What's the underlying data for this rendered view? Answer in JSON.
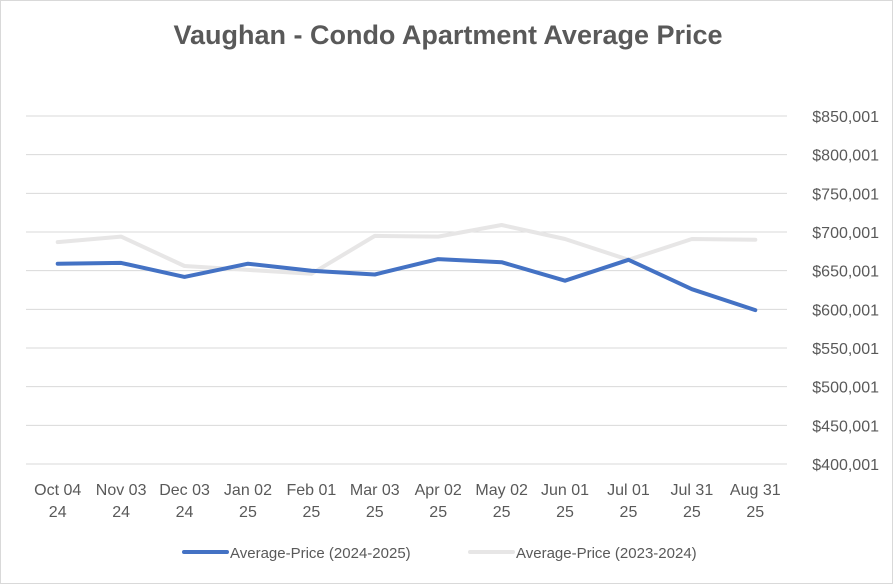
{
  "chart_data": {
    "type": "line",
    "title": "Vaughan - Condo Apartment Average Price",
    "xlabel": "",
    "ylabel": "",
    "categories": [
      [
        "Oct 04",
        "24"
      ],
      [
        "Nov 03",
        "24"
      ],
      [
        "Dec 03",
        "24"
      ],
      [
        "Jan 02",
        "25"
      ],
      [
        "Feb 01",
        "25"
      ],
      [
        "Mar 03",
        "25"
      ],
      [
        "Apr 02",
        "25"
      ],
      [
        "May 02",
        "25"
      ],
      [
        "Jun 01",
        "25"
      ],
      [
        "Jul 01",
        "25"
      ],
      [
        "Jul 31",
        "25"
      ],
      [
        "Aug 31",
        "25"
      ]
    ],
    "ylim": [
      400001,
      850001
    ],
    "yticks": [
      400001,
      450001,
      500001,
      550001,
      600001,
      650001,
      700001,
      750001,
      800001,
      850001
    ],
    "ytick_labels": [
      "$400,001",
      "$450,001",
      "$500,001",
      "$550,001",
      "$600,001",
      "$650,001",
      "$700,001",
      "$750,001",
      "$800,001",
      "$850,001"
    ],
    "grid": true,
    "legend_position": "bottom",
    "series": [
      {
        "name": "Average-Price (2024-2025)",
        "color": "#4472c4",
        "values": [
          659000,
          660000,
          642000,
          659000,
          650000,
          645000,
          665000,
          661000,
          637000,
          664000,
          626000,
          599000
        ]
      },
      {
        "name": "Average-Price (2023-2024)",
        "color": "#e7e6e6",
        "values": [
          687000,
          694000,
          656000,
          651000,
          646000,
          695000,
          694000,
          709000,
          691000,
          664000,
          691000,
          690000
        ]
      }
    ]
  }
}
